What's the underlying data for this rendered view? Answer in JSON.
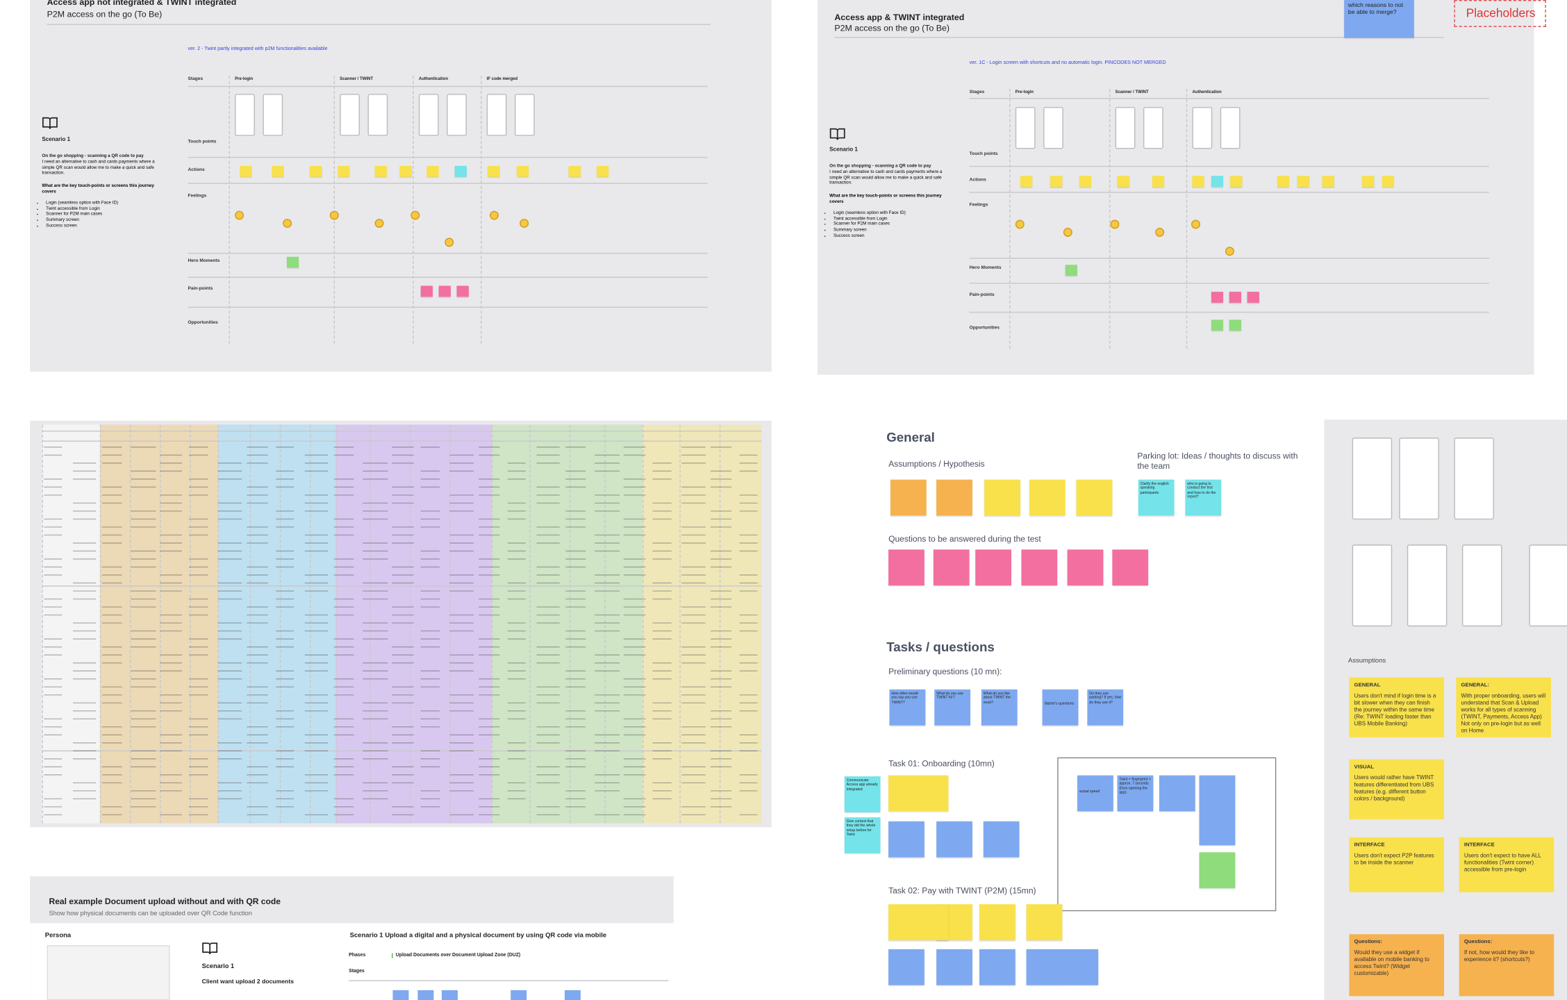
{
  "board_1": {
    "title": "Access app not integrated & TWINT integrated",
    "subtitle": "P2M access on the go (To Be)",
    "version": "ver. 2 - Twint partly integrated with p2M functionalities available",
    "scenario": "Scenario 1",
    "scenario_heading": "On the go shopping - scanning a QR code to pay",
    "scenario_text": "I need an alternative to cash and cards payments where a simple QR scan would allow me to make a quick and safe transaction.",
    "question": "What are the key touch-points or screens this journey covers",
    "bullets": [
      "Login (seamless option with Face ID)",
      "Twint accessible from Login",
      "Scanner for P2M main cases",
      "Summary screen",
      "Success screen"
    ],
    "rows": [
      "Stages",
      "Touch points",
      "Actions",
      "Feelings",
      "Hero Moments",
      "Pain-points",
      "Opportunities"
    ],
    "stages": [
      "Pre-login",
      "Scanner / TWINT",
      "Authentication",
      "IF code merged"
    ]
  },
  "board_2": {
    "title": "Access app & TWINT integrated",
    "subtitle": "P2M access on the go (To Be)",
    "version": "ver. 1C - Login screen with shortcuts and no automatic login. PINCODES NOT MERGED",
    "scenario": "Scenario 1",
    "scenario_heading": "On the go shopping - scanning a QR code to pay",
    "scenario_text": "I need an alternative to cash and cards payments where a simple QR scan would allow me to make a quick and safe transaction.",
    "question": "What are the key touch-points or screens this journey covers",
    "bullets": [
      "Login (seamless option with Face ID)",
      "Twint accessible from Login",
      "Scanner for P2M main cases",
      "Summary screen",
      "Success screen"
    ],
    "rows": [
      "Stages",
      "Touch points",
      "Actions",
      "Feelings",
      "Hero Moments",
      "Pain-points",
      "Opportunities"
    ],
    "stages": [
      "Pre-login",
      "Scanner / TWINT",
      "Authentication"
    ],
    "note": "which reasons to not be able to merge?",
    "placeholder": "Placeholders"
  },
  "general": {
    "title": "General",
    "assumptions": "Assumptions / Hypothesis",
    "parking_lot": "Parking lot: Ideas / thoughts to discuss with the team",
    "parking_notes": [
      "Clarify the english speaking participants",
      "who is going to conduct the test and how to do the report?"
    ],
    "questions": "Questions to be answered during the test",
    "tasks": "Tasks / questions",
    "preliminary": "Preliminary questions (10 mn):",
    "preliminary_notes": [
      "How often would you say you use TWINT?",
      "What do you use TWINT for?",
      "What do you like about TWINT the most?",
      "Starter's questions",
      "Do they use parking? If yes, how do they use it?"
    ],
    "task_1": "Task 01: Onboarding (10mn)",
    "task_1_notes": [
      "Communicate Access app already integrated",
      "Give context that they did the whole setup before for Twint",
      "actual speed",
      "Twint + fingerprint = approx. 7 seconds (from opening the app)"
    ],
    "task_2": "Task 02: Pay with TWINT (P2M) (15mn)"
  },
  "assumptions_panel": {
    "title": "Assumptions",
    "cards": [
      {
        "tag": "GENERAL",
        "text": "Users don't mind if login time is a bit slower when they can finish the journey within the same time (Re: TWINT loading faster than UBS Mobile Banking)"
      },
      {
        "tag": "GENERAL:",
        "text": "With proper onboarding, users will understand that Scan & Upload works for all types of scanning (TWINT, Payments, Access App) Not only on pre-login but as well on Home"
      },
      {
        "tag": "VISUAL",
        "text": "Users would rather have TWINT features differentiated from UBS features (e.g. different button colors / background)"
      },
      {
        "tag": "INTERFACE",
        "text": "Users don't expect P2P features to be inside the scanner"
      },
      {
        "tag": "INTERFACE",
        "text": "Users don't expect to have ALL functionalities (Twint corner) accessible from pre-login"
      },
      {
        "tag": "Questions:",
        "text": "Would they use a widget if available on mobile banking to access Twint? (Widget customizable)"
      },
      {
        "tag": "Questions:",
        "text": "If not, how would they like to experience it? (shortcuts?)"
      }
    ]
  },
  "board_4": {
    "title": "Real example Document upload without and with QR code",
    "subtitle": "Show how physical documents can be uploaded over QR Code function",
    "persona": "Persona",
    "scenario_title": "Scenario 1 Upload a digital and a physical document by using QR code via mobile",
    "scenario": "Scenario 1",
    "scenario_text": "Client want upload 2 documents",
    "phases": "Phases",
    "phase": "Upload Documents over Document Upload Zone (DUZ)",
    "stages": "Stages"
  }
}
